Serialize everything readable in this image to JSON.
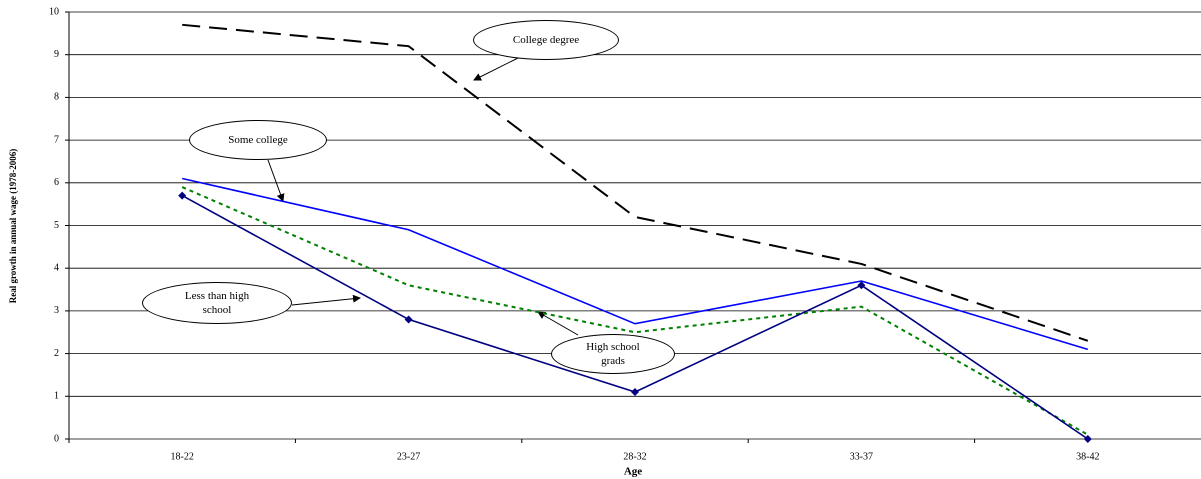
{
  "chart_data": {
    "type": "line",
    "x_label": "Age",
    "y_label": "Real growth in annual wage (1978-2006)",
    "categories": [
      "18-22",
      "23-27",
      "28-32",
      "33-37",
      "38-42"
    ],
    "ylim": [
      0,
      10
    ],
    "yticks": [
      0,
      1,
      2,
      3,
      4,
      5,
      6,
      7,
      8,
      9,
      10
    ],
    "grid": true,
    "series": [
      {
        "name": "College degree",
        "color": "#000000",
        "dash": "dashed",
        "values": [
          9.7,
          9.2,
          5.2,
          4.1,
          2.3
        ]
      },
      {
        "name": "Some college",
        "color": "#0000ff",
        "dash": "solid",
        "values": [
          6.1,
          4.9,
          2.7,
          3.7,
          2.1
        ]
      },
      {
        "name": "High school grads",
        "color": "#008000",
        "dash": "dotted",
        "values": [
          5.9,
          3.6,
          2.5,
          3.1,
          0.1
        ]
      },
      {
        "name": "Less than high school",
        "color": "#000080",
        "dash": "solid",
        "marker": "diamond",
        "values": [
          5.7,
          2.8,
          1.1,
          3.6,
          0
        ]
      }
    ]
  }
}
